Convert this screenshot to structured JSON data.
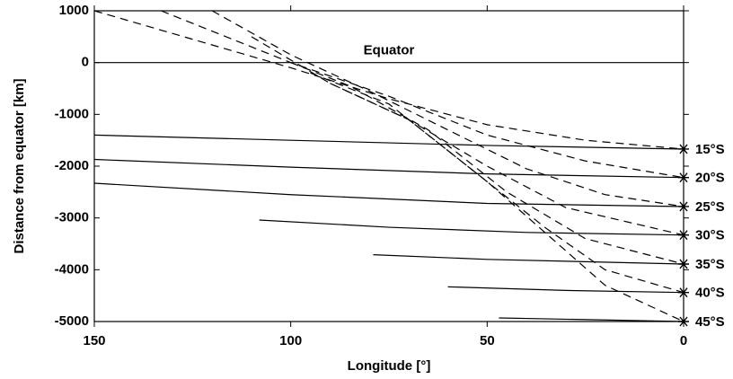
{
  "chart_data": {
    "type": "line",
    "xlabel": "Longitude [°]",
    "ylabel": "Distance from equator [km]",
    "xlim": [
      150,
      0
    ],
    "xticks": [
      150,
      100,
      50,
      0
    ],
    "ylim": [
      -5000,
      1000
    ],
    "yticks": [
      1000,
      0,
      -1000,
      -2000,
      -3000,
      -4000,
      -5000
    ],
    "annotations": [
      {
        "text": "Equator",
        "y": 0
      }
    ],
    "series": [
      {
        "name": "15°S",
        "style": "solid",
        "color": "#000",
        "x": [
          150,
          100,
          50,
          0
        ],
        "values": [
          -1400,
          -1500,
          -1600,
          -1670
        ]
      },
      {
        "name": "20°S",
        "style": "solid",
        "color": "#000",
        "x": [
          150,
          100,
          50,
          0
        ],
        "values": [
          -1870,
          -2020,
          -2150,
          -2220
        ]
      },
      {
        "name": "25°S",
        "style": "solid",
        "color": "#000",
        "x": [
          150,
          100,
          50,
          0
        ],
        "values": [
          -2330,
          -2550,
          -2720,
          -2780
        ]
      },
      {
        "name": "30°S",
        "style": "solid",
        "color": "#000",
        "x": [
          108,
          75,
          40,
          0
        ],
        "values": [
          -3040,
          -3180,
          -3280,
          -3330
        ]
      },
      {
        "name": "35°S",
        "style": "solid",
        "color": "#000",
        "x": [
          79,
          50,
          0
        ],
        "values": [
          -3710,
          -3800,
          -3890
        ]
      },
      {
        "name": "40°S",
        "style": "solid",
        "color": "#000",
        "x": [
          60,
          30,
          0
        ],
        "values": [
          -4330,
          -4400,
          -4440
        ]
      },
      {
        "name": "45°S",
        "style": "solid",
        "color": "#000",
        "x": [
          47,
          0
        ],
        "values": [
          -4930,
          -5000
        ]
      },
      {
        "style": "dashed",
        "color": "#000",
        "x": [
          150,
          100,
          75,
          50,
          25,
          0
        ],
        "values": [
          1000,
          -100,
          -700,
          -1200,
          -1500,
          -1670
        ]
      },
      {
        "style": "dashed",
        "color": "#000",
        "x": [
          133,
          100,
          75,
          50,
          25,
          0
        ],
        "values": [
          1000,
          0,
          -650,
          -1400,
          -1900,
          -2220
        ]
      },
      {
        "style": "dashed",
        "color": "#000",
        "x": [
          120,
          100,
          80,
          60,
          40,
          20,
          0
        ],
        "values": [
          1000,
          150,
          -550,
          -1300,
          -2050,
          -2550,
          -2780
        ]
      },
      {
        "style": "dashed",
        "color": "#000",
        "x": [
          110,
          90,
          70,
          50,
          30,
          0
        ],
        "values": [
          500,
          -400,
          -1100,
          -2000,
          -2800,
          -3330
        ]
      },
      {
        "style": "dashed",
        "color": "#000",
        "x": [
          100,
          85,
          65,
          45,
          25,
          0
        ],
        "values": [
          0,
          -450,
          -1300,
          -2500,
          -3400,
          -3890
        ]
      },
      {
        "style": "dashed",
        "color": "#000",
        "x": [
          95,
          75,
          55,
          35,
          20,
          0
        ],
        "values": [
          -200,
          -800,
          -2000,
          -3200,
          -4000,
          -4440
        ]
      },
      {
        "style": "dashed",
        "color": "#000",
        "x": [
          90,
          70,
          50,
          35,
          20,
          0
        ],
        "values": [
          -400,
          -1100,
          -2300,
          -3300,
          -4300,
          -5000
        ]
      }
    ]
  }
}
